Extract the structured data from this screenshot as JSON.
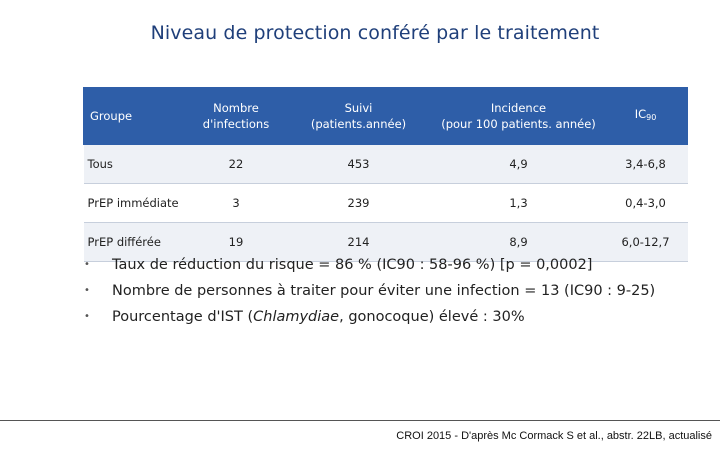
{
  "title": "Niveau de protection conféré par le traitement",
  "table": {
    "headers": {
      "groupe": "Groupe",
      "nombre_l1": "Nombre",
      "nombre_l2": "d'infections",
      "suivi_l1": "Suivi",
      "suivi_l2": "(patients.année)",
      "incidence_l1": "Incidence",
      "incidence_l2": "(pour 100 patients. année)",
      "ic_main": "IC",
      "ic_sub": "90"
    },
    "rows": [
      {
        "groupe": "Tous",
        "infections": "22",
        "suivi": "453",
        "incidence": "4,9",
        "ic": "3,4-6,8"
      },
      {
        "groupe": "PrEP immédiate",
        "infections": "3",
        "suivi": "239",
        "incidence": "1,3",
        "ic": "0,4-3,0"
      },
      {
        "groupe": "PrEP différée",
        "infections": "19",
        "suivi": "214",
        "incidence": "8,9",
        "ic": "6,0-12,7"
      }
    ]
  },
  "bullets": {
    "b1": "Taux de réduction du risque = 86 % (IC90 : 58-96 %) [p = 0,0002]",
    "b2": "Nombre de personnes à traiter pour éviter une infection = 13 (IC90 : 9-25)",
    "b3_pre": "Pourcentage d'IST (",
    "b3_em": "Chlamydiae",
    "b3_post": ", gonocoque) élevé : 30%"
  },
  "footer": "CROI 2015 - D'après Mc Cormack S et al., abstr. 22LB, actualisé"
}
